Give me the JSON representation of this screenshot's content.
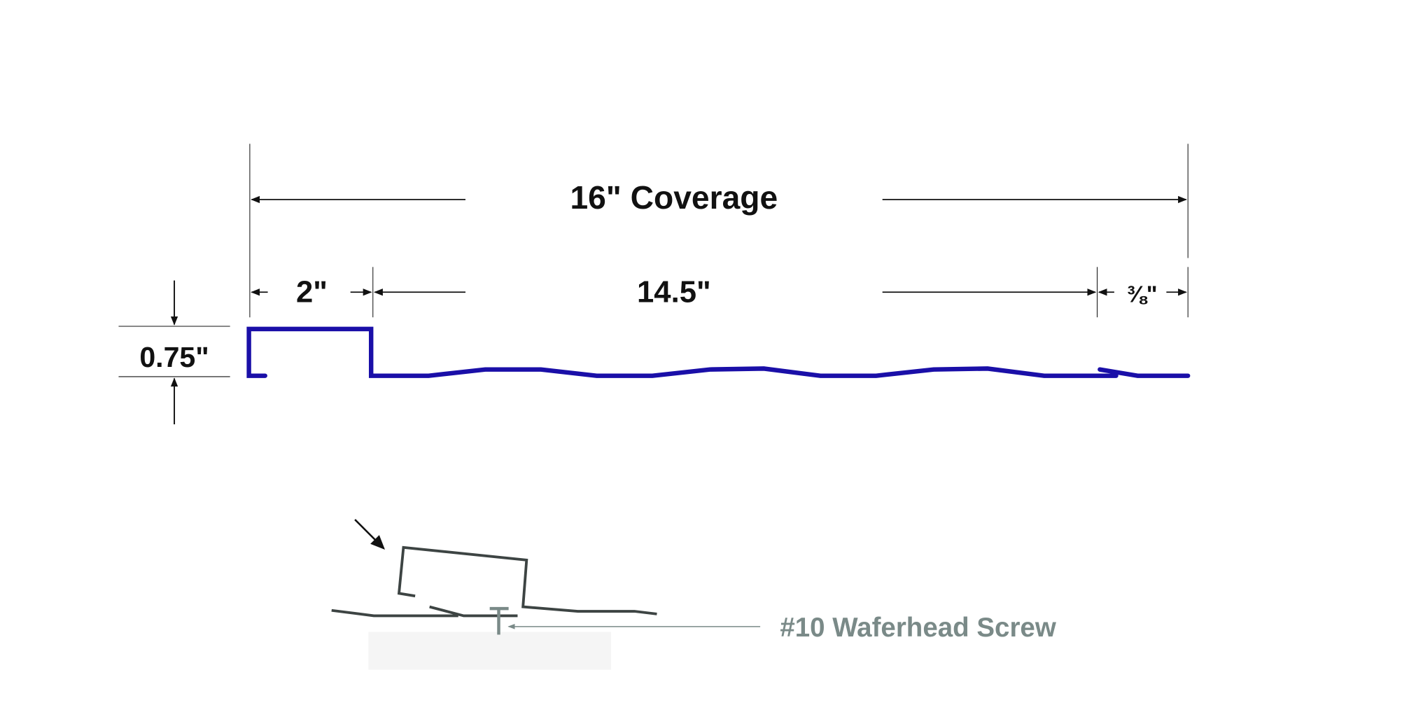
{
  "dimensions": {
    "coverage": "16\" Coverage",
    "rib_width": "2\"",
    "pan_width": "14.5\"",
    "lip_width": "⅜\"",
    "rib_height": "0.75\""
  },
  "callouts": {
    "screw": "#10 Waferhead Screw"
  },
  "colors": {
    "profile": "#1a0fa8",
    "dimension_lines": "#111111",
    "detail_panel": "#3d4443",
    "screw": "#7a8a88",
    "substrate": "#f5f5f5"
  }
}
